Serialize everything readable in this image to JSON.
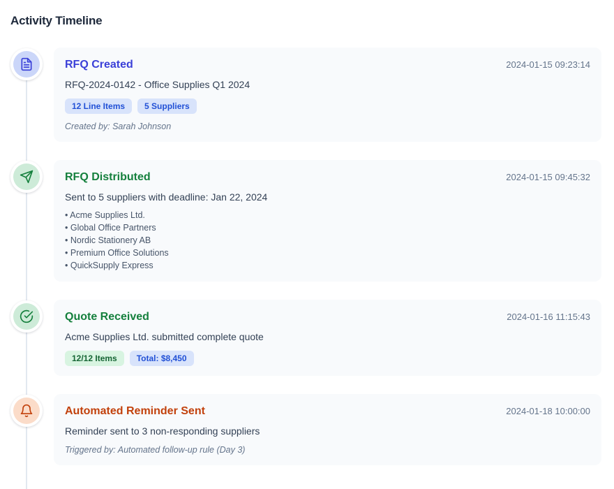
{
  "page": {
    "title": "Activity Timeline"
  },
  "colors": {
    "heading": "#1e293b",
    "card_background": "#f8fafc",
    "timeline_line": "#e2e8f0",
    "timestamp_text": "#64748b",
    "blue_accent": "#3b40d8",
    "green_accent": "#15803d",
    "orange_accent": "#c2410c",
    "blue_badge_bg": "#d8e3fb",
    "green_badge_bg": "#d8f4e1",
    "blue_marker_bg": "#cbd6f9",
    "green_marker_bg": "#cdebd8",
    "orange_marker_bg": "#fbdcc9"
  },
  "timeline": {
    "events": [
      {
        "id": "rfq-created",
        "theme": "blue",
        "icon": "document-icon",
        "title": "RFQ Created",
        "timestamp": "2024-01-15 09:23:14",
        "description": "RFQ-2024-0142 - Office Supplies Q1 2024",
        "badges": [
          {
            "label": "12 Line Items",
            "style": "blue"
          },
          {
            "label": "5 Suppliers",
            "style": "blue"
          }
        ],
        "meta": "Created by: Sarah Johnson"
      },
      {
        "id": "rfq-distributed",
        "theme": "green",
        "icon": "send-icon",
        "title": "RFQ Distributed",
        "timestamp": "2024-01-15 09:45:32",
        "description": "Sent to 5 suppliers with deadline: Jan 22, 2024",
        "list": [
          "Acme Supplies Ltd.",
          "Global Office Partners",
          "Nordic Stationery AB",
          "Premium Office Solutions",
          "QuickSupply Express"
        ]
      },
      {
        "id": "quote-received",
        "theme": "green",
        "icon": "check-circle-icon",
        "title": "Quote Received",
        "timestamp": "2024-01-16 11:15:43",
        "description": "Acme Supplies Ltd. submitted complete quote",
        "badges": [
          {
            "label": "12/12 Items",
            "style": "green"
          },
          {
            "label": "Total: $8,450",
            "style": "blue"
          }
        ]
      },
      {
        "id": "automated-reminder-sent",
        "theme": "orange",
        "icon": "bell-icon",
        "title": "Automated Reminder Sent",
        "timestamp": "2024-01-18 10:00:00",
        "description": "Reminder sent to 3 non-responding suppliers",
        "meta": "Triggered by: Automated follow-up rule (Day 3)"
      }
    ]
  }
}
